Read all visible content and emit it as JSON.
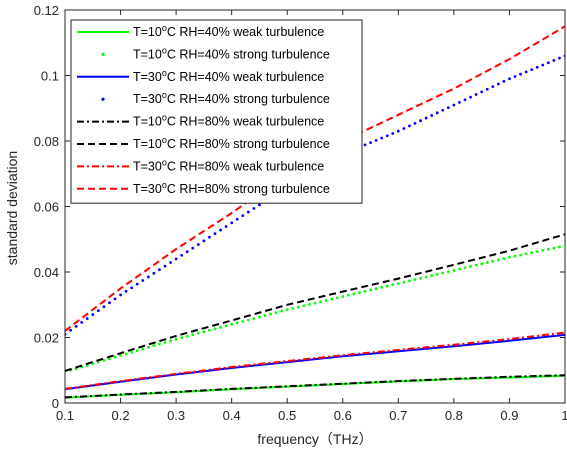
{
  "chart_data": {
    "type": "line",
    "title": "",
    "xlabel": "frequency（THz）",
    "ylabel": "standard deviation",
    "xlim": [
      0.1,
      1
    ],
    "ylim": [
      0,
      0.12
    ],
    "xticks": [
      "0.1",
      "0.2",
      "0.3",
      "0.4",
      "0.5",
      "0.6",
      "0.7",
      "0.8",
      "0.9",
      "1"
    ],
    "yticks": [
      "0",
      "0.02",
      "0.04",
      "0.06",
      "0.08",
      "0.1",
      "0.12"
    ],
    "grid": false,
    "legend_position": "top-left",
    "series": [
      {
        "name": "T=10°C RH=40% weak turbulence",
        "legend_prefix": "T=10",
        "legend_sup": "o",
        "legend_suffix": "C RH=40% weak turbulence",
        "color": "#00ff00",
        "style": "solid",
        "x": [
          0.1,
          0.2,
          0.3,
          0.4,
          0.5,
          0.6,
          0.7,
          0.8,
          0.9,
          1.0
        ],
        "y": [
          0.0016,
          0.0025,
          0.0033,
          0.0042,
          0.005,
          0.0058,
          0.0066,
          0.0073,
          0.0078,
          0.0083
        ]
      },
      {
        "name": "T=10°C RH=40% strong turbulence",
        "legend_prefix": "T=10",
        "legend_sup": "o",
        "legend_suffix": "C RH=40% strong turbulence",
        "color": "#00ff00",
        "style": "dotted",
        "x": [
          0.1,
          0.2,
          0.3,
          0.4,
          0.5,
          0.6,
          0.7,
          0.8,
          0.9,
          1.0
        ],
        "y": [
          0.0095,
          0.0145,
          0.0195,
          0.024,
          0.0285,
          0.0325,
          0.0365,
          0.0405,
          0.0445,
          0.048
        ]
      },
      {
        "name": "T=30°C RH=40% weak turbulence",
        "legend_prefix": "T=30",
        "legend_sup": "o",
        "legend_suffix": "C  RH=40% weak turbulence",
        "color": "#0000ff",
        "style": "solid",
        "x": [
          0.1,
          0.2,
          0.3,
          0.4,
          0.5,
          0.6,
          0.7,
          0.8,
          0.9,
          1.0
        ],
        "y": [
          0.0042,
          0.0065,
          0.0087,
          0.0107,
          0.0125,
          0.0143,
          0.0158,
          0.0173,
          0.019,
          0.0208
        ]
      },
      {
        "name": "T=30°C RH=40% strong turbulence",
        "legend_prefix": "T=30",
        "legend_sup": "o",
        "legend_suffix": "C  RH=40% strong turbulence",
        "color": "#0000ff",
        "style": "dotted",
        "x": [
          0.1,
          0.2,
          0.3,
          0.4,
          0.5,
          0.6,
          0.7,
          0.8,
          0.9,
          1.0
        ],
        "y": [
          0.021,
          0.033,
          0.044,
          0.055,
          0.066,
          0.076,
          0.083,
          0.091,
          0.099,
          0.106
        ]
      },
      {
        "name": "T=10°C RH=80% weak turbulence",
        "legend_prefix": "T=10",
        "legend_sup": "o",
        "legend_suffix": "C  RH=80% weak turbulence",
        "color": "#000000",
        "style": "dashdot",
        "x": [
          0.1,
          0.2,
          0.3,
          0.4,
          0.5,
          0.6,
          0.7,
          0.8,
          0.9,
          1.0
        ],
        "y": [
          0.0017,
          0.0026,
          0.0034,
          0.0043,
          0.0051,
          0.0059,
          0.0067,
          0.0074,
          0.008,
          0.0085
        ]
      },
      {
        "name": "T=10°C RH=80% strong turbulence",
        "legend_prefix": "T=10",
        "legend_sup": "o",
        "legend_suffix": "C  RH=80% strong turbulence",
        "color": "#000000",
        "style": "dashed",
        "x": [
          0.1,
          0.2,
          0.3,
          0.4,
          0.5,
          0.6,
          0.7,
          0.8,
          0.9,
          1.0
        ],
        "y": [
          0.0098,
          0.0152,
          0.0205,
          0.0252,
          0.03,
          0.034,
          0.038,
          0.0422,
          0.0465,
          0.0515
        ]
      },
      {
        "name": "T=30°C RH=80% weak turbulence",
        "legend_prefix": "T=30",
        "legend_sup": "o",
        "legend_suffix": "C  RH=80% weak turbulence",
        "color": "#ff0000",
        "style": "dashdot",
        "x": [
          0.1,
          0.2,
          0.3,
          0.4,
          0.5,
          0.6,
          0.7,
          0.8,
          0.9,
          1.0
        ],
        "y": [
          0.0043,
          0.0067,
          0.0089,
          0.011,
          0.0128,
          0.0146,
          0.0162,
          0.0178,
          0.0195,
          0.0215
        ]
      },
      {
        "name": "T=30°C RH=80% strong turbulence",
        "legend_prefix": "T=30",
        "legend_sup": "o",
        "legend_suffix": "C  RH=80% strong turbulence",
        "color": "#ff0000",
        "style": "dashed",
        "x": [
          0.1,
          0.2,
          0.3,
          0.4,
          0.5,
          0.6,
          0.7,
          0.8,
          0.9,
          1.0
        ],
        "y": [
          0.022,
          0.035,
          0.047,
          0.058,
          0.07,
          0.08,
          0.088,
          0.096,
          0.105,
          0.115
        ]
      }
    ]
  }
}
